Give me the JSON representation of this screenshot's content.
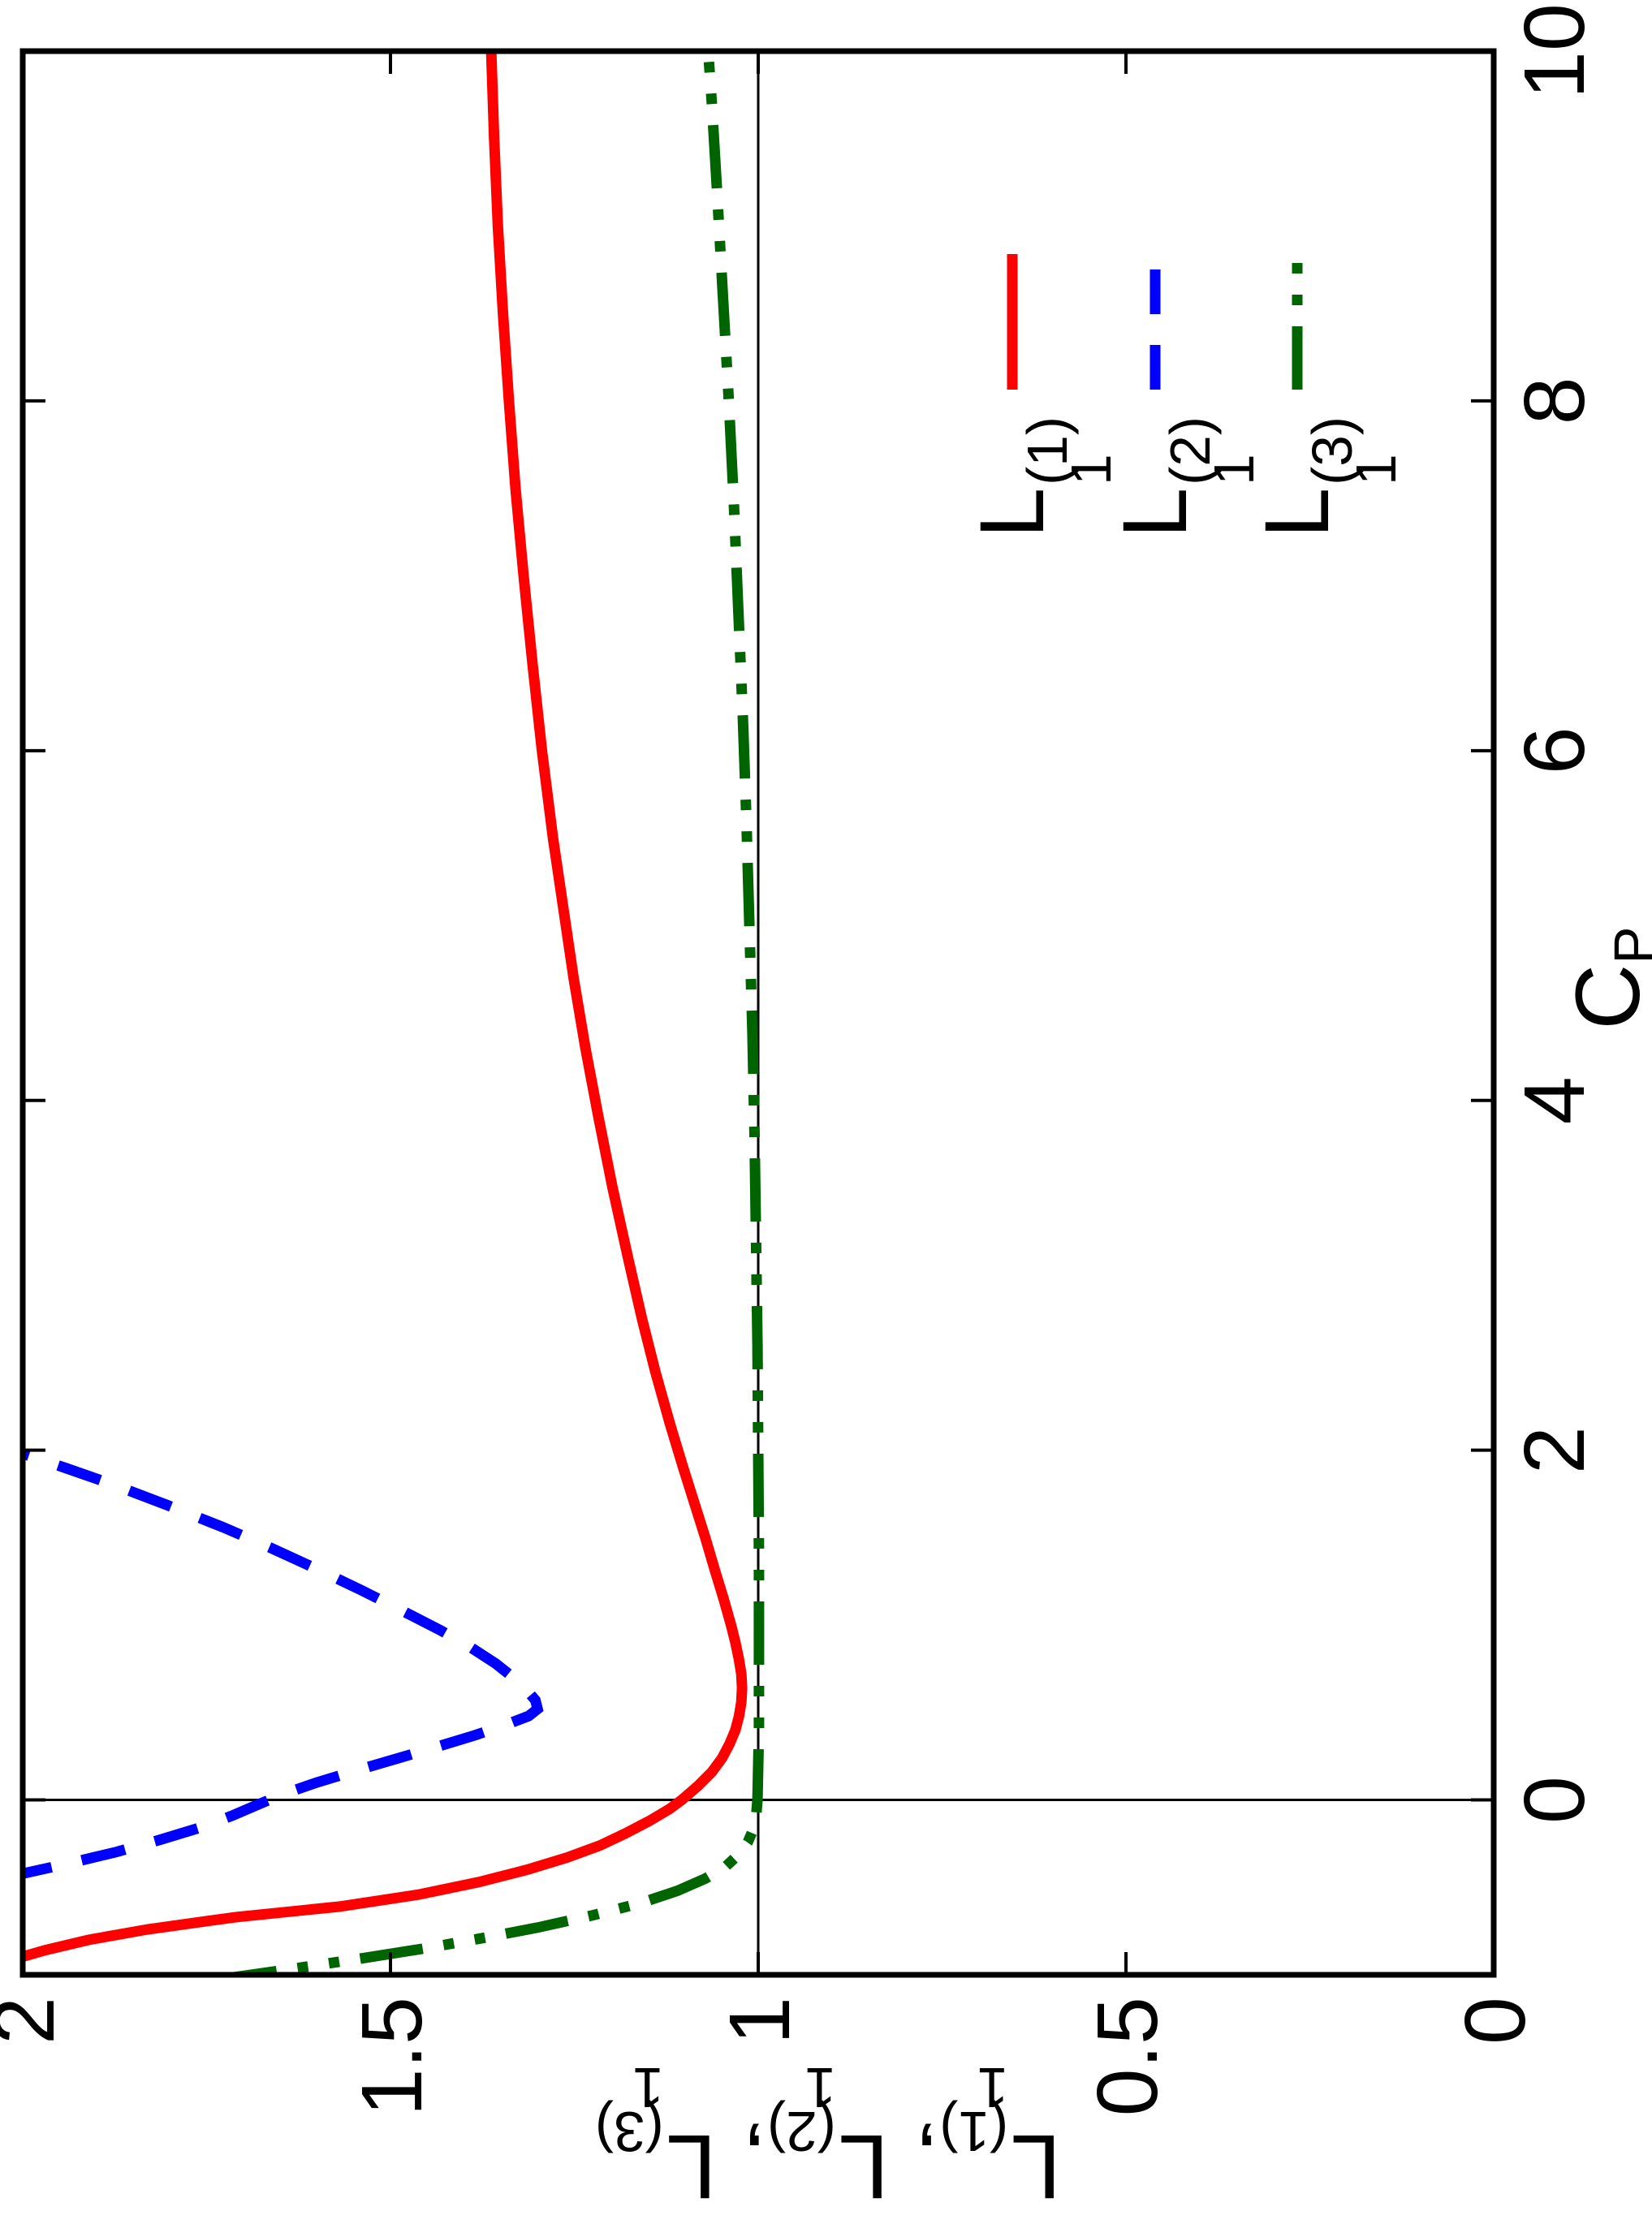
{
  "chart_data": {
    "type": "line",
    "title": "",
    "xlabel": {
      "base": "C",
      "sub": "P"
    },
    "ylabel_separator": ", ",
    "xlim": [
      -1,
      10
    ],
    "ylim": [
      0,
      2
    ],
    "grid": false,
    "legend_position": "right-middle-inside",
    "x_ticks": {
      "values": [
        0,
        2,
        4,
        6,
        8,
        10
      ],
      "labels": [
        "0",
        "2",
        "4",
        "6",
        "8",
        "10"
      ]
    },
    "y_ticks": {
      "values": [
        0,
        0.5,
        1,
        1.5,
        2
      ],
      "labels": [
        "0",
        "0.5",
        "1",
        "1.5",
        "2"
      ]
    },
    "reference_lines": [
      {
        "orientation": "vertical",
        "at": 0,
        "color": "#000000"
      },
      {
        "orientation": "horizontal",
        "at": 1,
        "color": "#000000"
      }
    ],
    "axis_color": "#000000",
    "background_color": "#ffffff",
    "series": [
      {
        "name": "L1^(1)",
        "label": {
          "base": "L",
          "sub": "1",
          "sup": "(1)"
        },
        "color": "#ff0000",
        "dash": "solid",
        "points": [
          [
            -0.92,
            2.02
          ],
          [
            -0.86,
            1.97
          ],
          [
            -0.8,
            1.91
          ],
          [
            -0.74,
            1.83
          ],
          [
            -0.67,
            1.71
          ],
          [
            -0.61,
            1.57
          ],
          [
            -0.54,
            1.46
          ],
          [
            -0.47,
            1.38
          ],
          [
            -0.4,
            1.315
          ],
          [
            -0.33,
            1.26
          ],
          [
            -0.26,
            1.215
          ],
          [
            -0.19,
            1.18
          ],
          [
            -0.12,
            1.148
          ],
          [
            -0.05,
            1.12
          ],
          [
            0,
            1.104
          ],
          [
            0.08,
            1.082
          ],
          [
            0.16,
            1.063
          ],
          [
            0.24,
            1.049
          ],
          [
            0.32,
            1.039
          ],
          [
            0.4,
            1.031
          ],
          [
            0.48,
            1.026
          ],
          [
            0.56,
            1.023
          ],
          [
            0.64,
            1.022
          ],
          [
            0.72,
            1.023
          ],
          [
            0.8,
            1.026
          ],
          [
            0.9,
            1.031
          ],
          [
            1.0,
            1.037
          ],
          [
            1.15,
            1.047
          ],
          [
            1.3,
            1.058
          ],
          [
            1.5,
            1.072
          ],
          [
            1.7,
            1.087
          ],
          [
            1.9,
            1.102
          ],
          [
            2.15,
            1.12
          ],
          [
            2.45,
            1.14
          ],
          [
            2.75,
            1.158
          ],
          [
            3.1,
            1.177
          ],
          [
            3.5,
            1.198
          ],
          [
            3.9,
            1.217
          ],
          [
            4.3,
            1.235
          ],
          [
            4.7,
            1.251
          ],
          [
            5.1,
            1.265
          ],
          [
            5.5,
            1.279
          ],
          [
            6.0,
            1.294
          ],
          [
            6.5,
            1.307
          ],
          [
            7.0,
            1.319
          ],
          [
            7.5,
            1.33
          ],
          [
            8.0,
            1.339
          ],
          [
            8.5,
            1.347
          ],
          [
            9.0,
            1.354
          ],
          [
            9.5,
            1.359
          ],
          [
            10.0,
            1.363
          ]
        ]
      },
      {
        "name": "L1^(2)",
        "label": {
          "base": "L",
          "sub": "1",
          "sup": "(2)"
        },
        "color": "#0000ff",
        "dash": "dashed",
        "points": [
          [
            -0.44,
            2.02
          ],
          [
            -0.37,
            1.945
          ],
          [
            -0.3,
            1.875
          ],
          [
            -0.23,
            1.815
          ],
          [
            -0.16,
            1.76
          ],
          [
            -0.09,
            1.715
          ],
          [
            -0.03,
            1.682
          ],
          [
            0.03,
            1.648
          ],
          [
            0.1,
            1.6
          ],
          [
            0.17,
            1.545
          ],
          [
            0.24,
            1.488
          ],
          [
            0.31,
            1.432
          ],
          [
            0.37,
            1.385
          ],
          [
            0.43,
            1.343
          ],
          [
            0.48,
            1.312
          ],
          [
            0.52,
            1.3
          ],
          [
            0.57,
            1.303
          ],
          [
            0.63,
            1.315
          ],
          [
            0.7,
            1.333
          ],
          [
            0.78,
            1.357
          ],
          [
            0.87,
            1.39
          ],
          [
            0.97,
            1.432
          ],
          [
            1.08,
            1.483
          ],
          [
            1.2,
            1.54
          ],
          [
            1.32,
            1.6
          ],
          [
            1.44,
            1.662
          ],
          [
            1.56,
            1.728
          ],
          [
            1.68,
            1.8
          ],
          [
            1.8,
            1.875
          ],
          [
            1.9,
            1.943
          ],
          [
            1.98,
            2.0
          ],
          [
            2.03,
            2.04
          ]
        ]
      },
      {
        "name": "L1^(3)",
        "label": {
          "base": "L",
          "sub": "1",
          "sup": "(3)"
        },
        "color": "#006400",
        "dash": "dash-dot-dot",
        "points": [
          [
            -1.03,
            1.74
          ],
          [
            -0.97,
            1.64
          ],
          [
            -0.91,
            1.545
          ],
          [
            -0.85,
            1.455
          ],
          [
            -0.79,
            1.375
          ],
          [
            -0.73,
            1.3
          ],
          [
            -0.66,
            1.225
          ],
          [
            -0.59,
            1.16
          ],
          [
            -0.52,
            1.11
          ],
          [
            -0.45,
            1.072
          ],
          [
            -0.38,
            1.044
          ],
          [
            -0.31,
            1.026
          ],
          [
            -0.24,
            1.014
          ],
          [
            -0.17,
            1.007
          ],
          [
            -0.1,
            1.003
          ],
          [
            0,
            1.001
          ],
          [
            0.4,
            0.999
          ],
          [
            0.8,
            0.999
          ],
          [
            1.4,
            0.999
          ],
          [
            2.0,
            1.0
          ],
          [
            2.6,
            1.001
          ],
          [
            3.2,
            1.003
          ],
          [
            3.8,
            1.005
          ],
          [
            4.4,
            1.008
          ],
          [
            5.0,
            1.012
          ],
          [
            5.6,
            1.016
          ],
          [
            6.2,
            1.021
          ],
          [
            6.8,
            1.027
          ],
          [
            7.4,
            1.033
          ],
          [
            8.0,
            1.04
          ],
          [
            8.6,
            1.048
          ],
          [
            9.2,
            1.056
          ],
          [
            9.7,
            1.063
          ],
          [
            10.0,
            1.068
          ]
        ]
      }
    ]
  }
}
